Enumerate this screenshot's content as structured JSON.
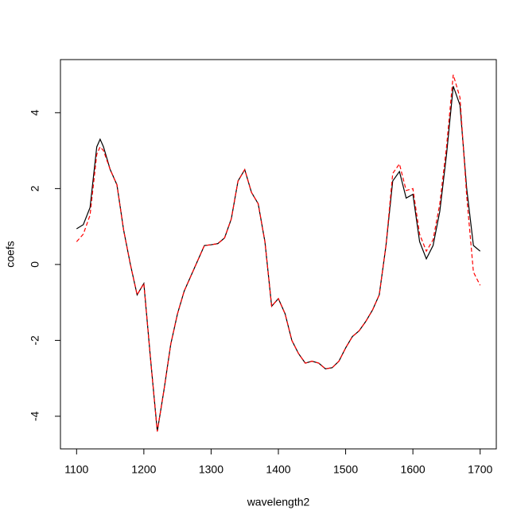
{
  "chart_data": {
    "type": "line",
    "x_label": "wavelength2",
    "y_label": "coefs",
    "x": [
      1100,
      1110,
      1120,
      1130,
      1135,
      1140,
      1150,
      1160,
      1170,
      1180,
      1190,
      1200,
      1210,
      1220,
      1230,
      1240,
      1250,
      1260,
      1270,
      1280,
      1290,
      1300,
      1310,
      1320,
      1330,
      1340,
      1350,
      1360,
      1370,
      1380,
      1390,
      1400,
      1410,
      1420,
      1430,
      1440,
      1450,
      1460,
      1470,
      1480,
      1490,
      1500,
      1510,
      1520,
      1530,
      1540,
      1550,
      1560,
      1570,
      1580,
      1590,
      1600,
      1610,
      1620,
      1630,
      1640,
      1650,
      1660,
      1670,
      1680,
      1690,
      1700
    ],
    "series": [
      {
        "color": "#000000",
        "dash": false,
        "values": [
          0.94,
          1.05,
          1.5,
          3.1,
          3.3,
          3.1,
          2.5,
          2.1,
          0.9,
          0.0,
          -0.8,
          -0.5,
          -2.5,
          -4.4,
          -3.3,
          -2.1,
          -1.3,
          -0.7,
          -0.3,
          0.1,
          0.5,
          0.52,
          0.55,
          0.7,
          1.2,
          2.2,
          2.5,
          1.9,
          1.6,
          0.6,
          -1.1,
          -0.9,
          -1.3,
          -2.0,
          -2.35,
          -2.6,
          -2.55,
          -2.6,
          -2.75,
          -2.72,
          -2.55,
          -2.2,
          -1.9,
          -1.75,
          -1.5,
          -1.2,
          -0.8,
          0.5,
          2.2,
          2.45,
          1.75,
          1.85,
          0.6,
          0.15,
          0.5,
          1.4,
          2.9,
          4.7,
          4.2,
          2.0,
          0.5,
          0.35
        ]
      },
      {
        "color": "#ff0000",
        "dash": true,
        "values": [
          0.6,
          0.8,
          1.3,
          2.9,
          3.1,
          3.0,
          2.5,
          2.1,
          0.9,
          0.0,
          -0.8,
          -0.5,
          -2.5,
          -4.4,
          -3.3,
          -2.1,
          -1.3,
          -0.7,
          -0.3,
          0.1,
          0.5,
          0.52,
          0.55,
          0.7,
          1.2,
          2.2,
          2.5,
          1.9,
          1.6,
          0.6,
          -1.1,
          -0.9,
          -1.3,
          -2.0,
          -2.35,
          -2.6,
          -2.55,
          -2.6,
          -2.75,
          -2.72,
          -2.55,
          -2.2,
          -1.9,
          -1.75,
          -1.5,
          -1.2,
          -0.8,
          0.5,
          2.4,
          2.65,
          1.95,
          2.0,
          0.8,
          0.35,
          0.65,
          1.6,
          3.1,
          5.0,
          4.4,
          1.8,
          -0.2,
          -0.55
        ]
      }
    ],
    "xlim": [
      1076,
      1724
    ],
    "ylim": [
      -4.86,
      5.4
    ],
    "xticks": [
      1100,
      1200,
      1300,
      1400,
      1500,
      1600,
      1700
    ],
    "yticks": [
      -4,
      -2,
      0,
      2,
      4
    ]
  }
}
